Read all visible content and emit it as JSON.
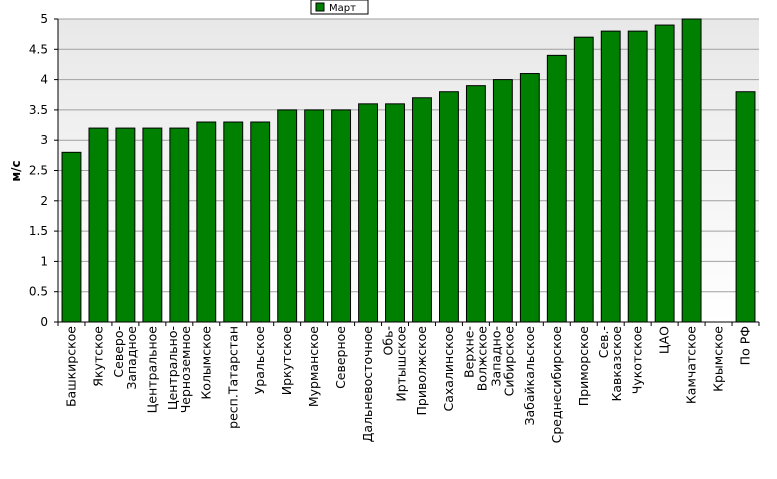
{
  "chart_data": {
    "type": "bar",
    "title": "",
    "xlabel": "",
    "ylabel": "м/с",
    "ylim": [
      0,
      5
    ],
    "yticks": [
      0,
      0.5,
      1,
      1.5,
      2,
      2.5,
      3,
      3.5,
      4,
      4.5,
      5
    ],
    "grid": true,
    "legend_position": "top-center",
    "categories": [
      "Башкирское",
      "Якутское",
      "Северо-Западное",
      "Центральное",
      "Центрально-Черноземное",
      "Колымское",
      "респ.Татарстан",
      "Уральское",
      "Иркутское",
      "Мурманское",
      "Северное",
      "Дальневосточное",
      "Обь-Иртышское",
      "Приволжское",
      "Сахалинское",
      "Верхне-Волжское",
      "Западно-Сибирское",
      "Забайкальское",
      "Среднесибирское",
      "Приморское",
      "Сев.-Кавказское",
      "Чукотское",
      "ЦАО",
      "Камчатское",
      "Крымское",
      "По РФ"
    ],
    "category_lines": [
      [
        "Башкирское"
      ],
      [
        "Якутское"
      ],
      [
        "Северо-",
        "Западное"
      ],
      [
        "Центральное"
      ],
      [
        "Центрально-",
        "Черноземное"
      ],
      [
        "Колымское"
      ],
      [
        "респ.Татарстан"
      ],
      [
        "Уральское"
      ],
      [
        "Иркутское"
      ],
      [
        "Мурманское"
      ],
      [
        "Северное"
      ],
      [
        "Дальневосточное"
      ],
      [
        "Обь-",
        "Иртышское"
      ],
      [
        "Приволжское"
      ],
      [
        "Сахалинское"
      ],
      [
        "Верхне-",
        "Волжское"
      ],
      [
        "Западно-",
        "Сибирское"
      ],
      [
        "Забайкальское"
      ],
      [
        "Среднесибирское"
      ],
      [
        "Приморское"
      ],
      [
        "Сев.-",
        "Кавказское"
      ],
      [
        "Чукотское"
      ],
      [
        "ЦАО"
      ],
      [
        "Камчатское"
      ],
      [
        "Крымское"
      ],
      [
        "По РФ"
      ]
    ],
    "series": [
      {
        "name": "Март",
        "color": "#008000",
        "values": [
          2.8,
          3.2,
          3.2,
          3.2,
          3.2,
          3.3,
          3.3,
          3.3,
          3.5,
          3.5,
          3.5,
          3.6,
          3.6,
          3.7,
          3.8,
          3.9,
          4.0,
          4.1,
          4.4,
          4.7,
          4.8,
          4.8,
          4.9,
          5.0,
          null,
          3.8
        ]
      }
    ]
  },
  "colors": {
    "bar_fill": "#008000",
    "bar_stroke": "#000000",
    "plot_bg_top": "#e8e8e8",
    "plot_bg_bottom": "#ffffff",
    "grid": "#a0a0a0"
  }
}
